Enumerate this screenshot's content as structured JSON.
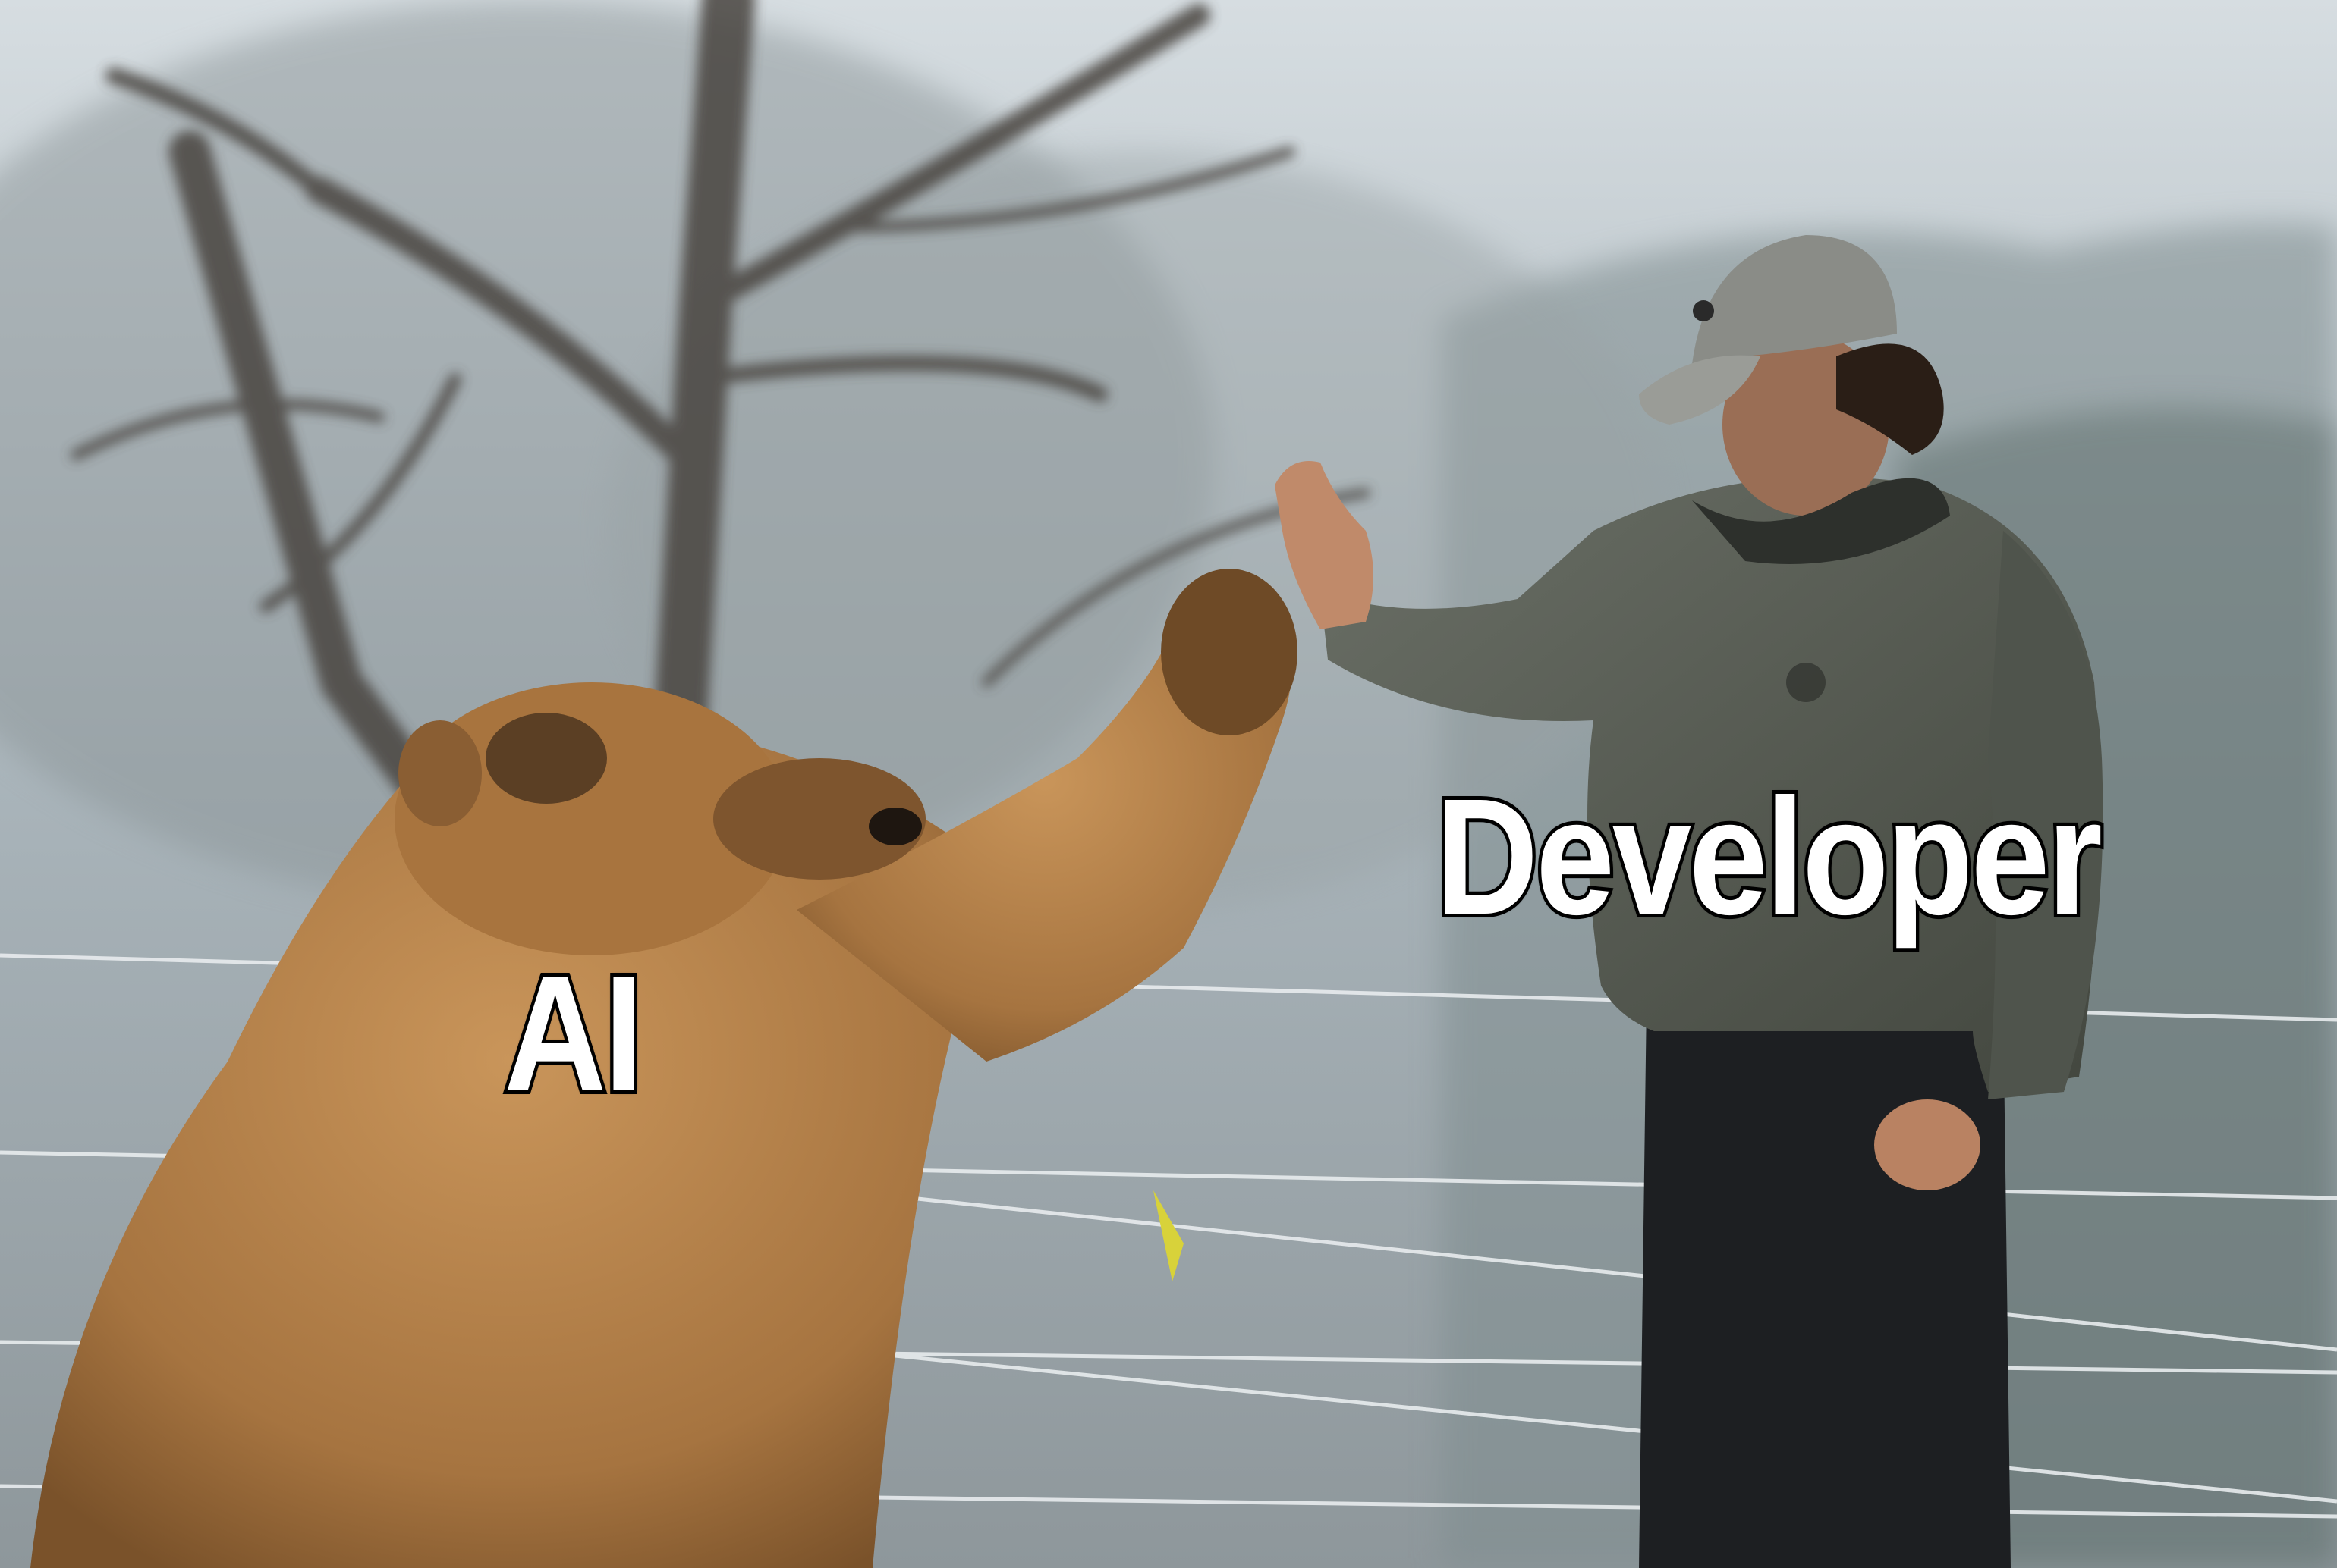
{
  "captions": {
    "bear_label": "AI",
    "person_label": "Developer"
  },
  "colors": {
    "caption_fill": "#ffffff",
    "caption_stroke": "#000000",
    "bear_fur": "#b8834a",
    "jacket": "#5b6058",
    "sky": "#c9d3d8"
  }
}
